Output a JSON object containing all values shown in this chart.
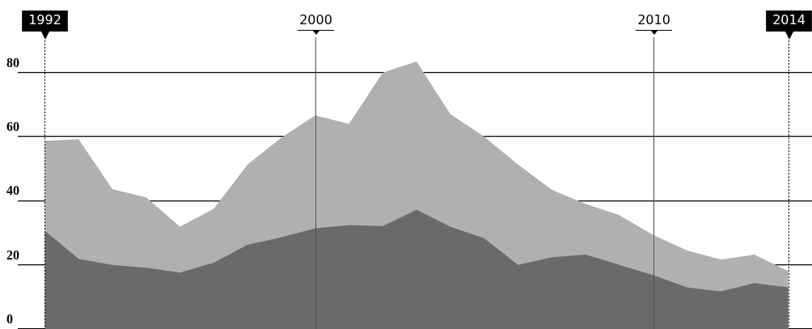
{
  "chart_data": {
    "type": "area",
    "x": [
      1992,
      1993,
      1994,
      1995,
      1996,
      1997,
      1998,
      1999,
      2000,
      2001,
      2002,
      2003,
      2004,
      2005,
      2006,
      2007,
      2008,
      2009,
      2010,
      2011,
      2012,
      2013,
      2014
    ],
    "series": [
      {
        "color": "#b0b0b0",
        "values": [
          58.7,
          59.2,
          43.6,
          41,
          31.9,
          37.5,
          51.3,
          59.7,
          66.6,
          64,
          80,
          83.4,
          67,
          60,
          51.3,
          43.4,
          39,
          35.5,
          29.3,
          24.5,
          21.7,
          23.2,
          18
        ]
      },
      {
        "color": "#6a6a6a",
        "values": [
          30.6,
          21.9,
          20,
          19.1,
          17.6,
          20.7,
          26.3,
          28.6,
          31.4,
          32.4,
          32.1,
          37.2,
          31.9,
          28.3,
          20,
          22.4,
          23.2,
          20,
          16.8,
          13,
          11.7,
          14.3,
          13
        ]
      }
    ],
    "xlim": [
      1991.2,
      2014.7
    ],
    "xticks": [
      1992,
      2000,
      2010,
      2014
    ],
    "ylim": [
      0,
      90
    ],
    "yticks": [
      0,
      20,
      40,
      60,
      80
    ],
    "grid": true
  }
}
